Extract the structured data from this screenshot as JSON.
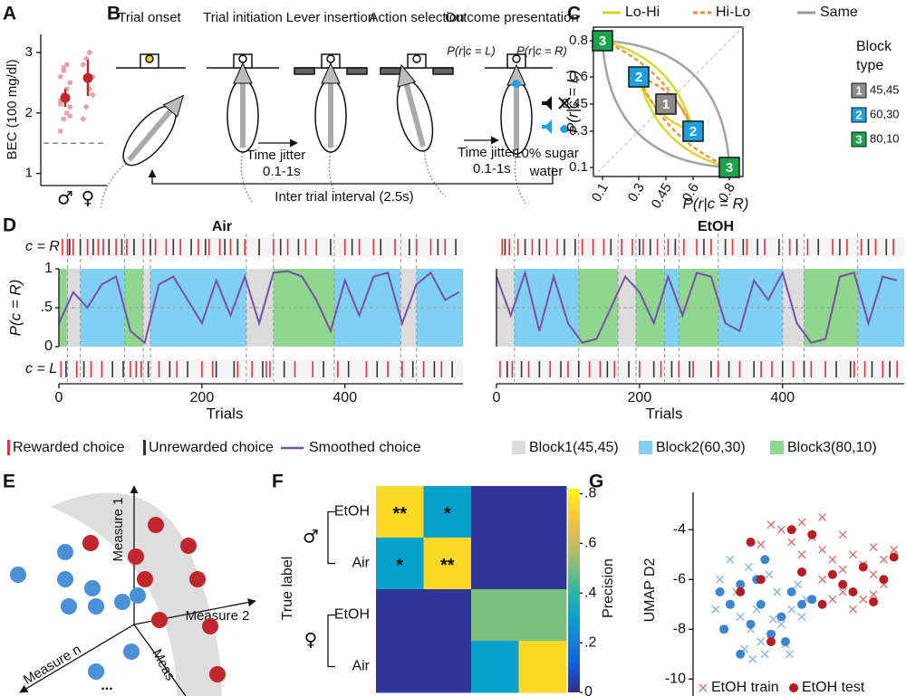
{
  "panel_labels": [
    "A",
    "B",
    "C",
    "D",
    "E",
    "F",
    "G"
  ],
  "panel_b": {
    "steps": [
      "Trial onset",
      "Trial initiation",
      "Lever insertion",
      "Action selection",
      "Outcome presentation"
    ],
    "jitter": [
      "Time jitter",
      "0.1-1s"
    ],
    "iti": "Inter trial interval (2.5s)",
    "outcome_labels": [
      "P(r|c = L)",
      "P(r|c = R)"
    ],
    "reward": [
      "10% sugar",
      "water"
    ]
  },
  "panel_e": {
    "axes": [
      "Measure 1",
      "Measure 2",
      "Measure n",
      "Meas"
    ],
    "ellipsis": "..."
  },
  "d_legend": [
    {
      "name": "Rewarded choice",
      "color": "#e8303a"
    },
    {
      "name": "Unrewarded choice",
      "color": "#333333"
    },
    {
      "name": "Smoothed choice",
      "color": "#7b4fa8"
    },
    {
      "name": "Block1(45,45)",
      "color": "#dcdcdc"
    },
    {
      "name": "Block2(60,30)",
      "color": "#7fd0f2"
    },
    {
      "name": "Block3(80,10)",
      "color": "#8fd68f"
    }
  ],
  "chart_data": [
    {
      "type": "strip",
      "ylabel": "BEC (100 mg/dl)",
      "categories": [
        "♂",
        "♀"
      ],
      "points": [
        [
          1.7,
          1.9,
          2.0,
          2.1,
          2.2,
          2.3,
          2.4,
          2.5,
          2.6,
          2.7,
          2.8,
          1.95,
          2.15,
          2.75
        ],
        [
          1.9,
          2.1,
          2.4,
          2.6,
          2.8,
          2.9,
          3.0,
          2.3
        ]
      ],
      "values": [
        2.25,
        2.58
      ],
      "errors": [
        0.15,
        0.3
      ],
      "color": "#c0272d",
      "point_color": "#e8a0aa",
      "reference_line": 1.5,
      "ylim": [
        0.8,
        3.3
      ],
      "yticks": [
        1,
        2,
        3
      ]
    },
    {
      "type": "block-map",
      "xlabel": "P(r|c = R)",
      "ylabel": "P(r|c = L)",
      "xlim": [
        0.05,
        0.875
      ],
      "ylim": [
        0.05,
        0.875
      ],
      "xticks": [
        0.1,
        0.3,
        0.45,
        0.6,
        0.8
      ],
      "yticks": [
        0.1,
        0.3,
        0.45,
        0.6,
        0.8
      ],
      "x": [
        0.45,
        0.3,
        0.6,
        0.1,
        0.8
      ],
      "y": [
        0.45,
        0.6,
        0.3,
        0.8,
        0.1
      ],
      "labels": [
        1,
        2,
        2,
        3,
        3
      ],
      "series": [
        {
          "name": "Lo-Hi",
          "color": "#d4d41e"
        },
        {
          "name": "Hi-Lo",
          "color": "#f08a24",
          "style": "dashed"
        },
        {
          "name": "Same",
          "color": "#9a9a9a"
        }
      ],
      "legend_title": [
        "Block",
        "type"
      ],
      "block_types": [
        {
          "label": 1,
          "name": "45,45",
          "color": "#8c8c8c"
        },
        {
          "label": 2,
          "name": "60,30",
          "color": "#1ea0e0"
        },
        {
          "label": 3,
          "name": "80,10",
          "color": "#1aa34a"
        }
      ]
    },
    {
      "type": "line",
      "title": "Air",
      "xlabel": "Trials",
      "ylabel": "P(c = R)",
      "raster_labels": [
        "c = R",
        "c = L"
      ],
      "xlim": [
        0,
        565
      ],
      "ylim": [
        0,
        1
      ],
      "xticks": [
        0,
        200,
        400
      ],
      "yticks": [
        0,
        {
          "value": 0.5,
          "label": ".5"
        },
        1
      ],
      "reference_line": 0.5,
      "x": [
        0,
        20,
        40,
        60,
        80,
        100,
        120,
        140,
        160,
        180,
        200,
        220,
        240,
        260,
        280,
        300,
        320,
        340,
        360,
        380,
        400,
        420,
        440,
        460,
        480,
        500,
        520,
        540,
        560
      ],
      "values": [
        0.3,
        0.7,
        0.5,
        0.8,
        0.9,
        0.2,
        0.05,
        0.8,
        0.9,
        0.6,
        0.3,
        0.85,
        0.4,
        0.9,
        0.3,
        0.95,
        0.97,
        0.9,
        0.6,
        0.2,
        0.85,
        0.4,
        0.9,
        0.95,
        0.3,
        0.8,
        0.95,
        0.6,
        0.7
      ],
      "blocks": [
        {
          "start": 0,
          "end": 12,
          "type": 3
        },
        {
          "start": 12,
          "end": 30,
          "type": 1
        },
        {
          "start": 30,
          "end": 92,
          "type": 2
        },
        {
          "start": 92,
          "end": 118,
          "type": 3
        },
        {
          "start": 118,
          "end": 128,
          "type": 1
        },
        {
          "start": 128,
          "end": 262,
          "type": 2
        },
        {
          "start": 262,
          "end": 300,
          "type": 1
        },
        {
          "start": 300,
          "end": 385,
          "type": 3
        },
        {
          "start": 385,
          "end": 478,
          "type": 2
        },
        {
          "start": 478,
          "end": 500,
          "type": 1
        },
        {
          "start": 500,
          "end": 565,
          "type": 2
        }
      ],
      "rasters": {
        "R": {
          "rewarded": [
            5,
            12,
            20,
            40,
            55,
            62,
            80,
            95,
            118,
            135,
            150,
            170,
            195,
            210,
            225,
            240,
            260,
            300,
            320,
            345,
            360,
            400,
            420,
            440,
            470,
            500,
            520,
            540
          ],
          "unrewarded": [
            15,
            30,
            48,
            70,
            88,
            105,
            128,
            160,
            185,
            205,
            232,
            250,
            280,
            310,
            335,
            380,
            410,
            450,
            490,
            530,
            555
          ]
        },
        "L": {
          "rewarded": [
            3,
            25,
            45,
            60,
            100,
            108,
            115,
            140,
            165,
            200,
            215,
            250,
            270,
            290,
            295,
            330,
            355,
            390,
            430,
            460,
            480,
            510,
            535
          ],
          "unrewarded": [
            10,
            35,
            75,
            90,
            125,
            155,
            180,
            220,
            245,
            285,
            315,
            370,
            405,
            445,
            495,
            525,
            550
          ]
        }
      }
    },
    {
      "type": "line",
      "title": "EtOH",
      "xlabel": "Trials",
      "xlim": [
        0,
        570
      ],
      "ylim": [
        0,
        1
      ],
      "xticks": [
        0,
        200,
        400
      ],
      "reference_line": 0.5,
      "x": [
        0,
        20,
        40,
        60,
        80,
        100,
        120,
        140,
        160,
        180,
        200,
        220,
        240,
        260,
        280,
        300,
        320,
        340,
        360,
        380,
        400,
        420,
        440,
        460,
        480,
        500,
        520,
        540,
        560
      ],
      "values": [
        0.9,
        0.4,
        0.95,
        0.2,
        0.9,
        0.3,
        0.05,
        0.1,
        0.5,
        0.9,
        0.7,
        0.3,
        0.9,
        0.4,
        0.95,
        0.9,
        0.3,
        0.2,
        0.85,
        0.6,
        0.95,
        0.3,
        0.05,
        0.1,
        0.9,
        0.95,
        0.3,
        0.9,
        0.85
      ],
      "blocks": [
        {
          "start": 0,
          "end": 25,
          "type": 1
        },
        {
          "start": 25,
          "end": 115,
          "type": 2
        },
        {
          "start": 115,
          "end": 170,
          "type": 3
        },
        {
          "start": 170,
          "end": 195,
          "type": 1
        },
        {
          "start": 195,
          "end": 235,
          "type": 3
        },
        {
          "start": 235,
          "end": 255,
          "type": 2
        },
        {
          "start": 255,
          "end": 310,
          "type": 3
        },
        {
          "start": 310,
          "end": 400,
          "type": 2
        },
        {
          "start": 400,
          "end": 430,
          "type": 1
        },
        {
          "start": 430,
          "end": 505,
          "type": 3
        },
        {
          "start": 505,
          "end": 570,
          "type": 2
        }
      ],
      "rasters": {
        "R": {
          "rewarded": [
            8,
            18,
            30,
            50,
            70,
            85,
            120,
            135,
            150,
            175,
            190,
            205,
            225,
            240,
            262,
            280,
            300,
            330,
            350,
            375,
            410,
            435,
            470,
            490,
            510,
            530,
            555
          ],
          "unrewarded": [
            12,
            40,
            60,
            95,
            110,
            160,
            200,
            215,
            250,
            290,
            320,
            345,
            365,
            395,
            420,
            450,
            480,
            520,
            545
          ]
        },
        "L": {
          "rewarded": [
            5,
            22,
            45,
            75,
            100,
            130,
            145,
            165,
            200,
            230,
            255,
            275,
            310,
            340,
            370,
            385,
            415,
            440,
            460,
            500,
            515,
            540,
            560
          ],
          "unrewarded": [
            15,
            35,
            60,
            90,
            115,
            155,
            185,
            220,
            245,
            270,
            300,
            325,
            360,
            400,
            430,
            475,
            495,
            525,
            550
          ]
        }
      }
    },
    {
      "type": "heatmap",
      "ylabel": "True label",
      "rows": [
        "EtOH",
        "Air",
        "EtOH",
        "Air"
      ],
      "groups": [
        "♂",
        "♀"
      ],
      "values": [
        [
          0.75,
          0.3,
          0.02,
          0.02
        ],
        [
          0.3,
          0.75,
          0.02,
          0.02
        ],
        [
          0.02,
          0.02,
          0.5,
          0.5
        ],
        [
          0.02,
          0.02,
          0.3,
          0.75
        ]
      ],
      "annotations": [
        [
          "**",
          "*",
          null,
          null
        ],
        [
          "*",
          "**",
          null,
          null
        ],
        [
          null,
          null,
          null,
          null
        ],
        [
          null,
          null,
          null,
          null
        ]
      ],
      "colorbar_label": "Precision",
      "clim": [
        0,
        0.82
      ],
      "cticks": [
        0,
        {
          "value": 0.2,
          "label": ".2"
        },
        {
          "value": 0.4,
          "label": ".4"
        },
        {
          "value": 0.6,
          "label": ".6"
        },
        {
          "value": 0.8,
          "label": ".8"
        }
      ]
    },
    {
      "type": "scatter",
      "ylabel": "UMAP D2",
      "xlim": [
        0,
        10
      ],
      "ylim": [
        -10.5,
        -2.5
      ],
      "yticks": [
        -10,
        -8,
        -6,
        -4
      ],
      "series": [
        {
          "name": "EtOH train",
          "color": "#d9706a",
          "marker": "x",
          "x": [
            4,
            5,
            5.5,
            6,
            6.5,
            7,
            7.5,
            8,
            8.5,
            9,
            9.5,
            6,
            7,
            8,
            9,
            5,
            6.5,
            7.5,
            8.5,
            4.5,
            3.5,
            3,
            6,
            7,
            8.5
          ],
          "y": [
            -4,
            -3.7,
            -4.3,
            -4.8,
            -5.2,
            -5.6,
            -5,
            -5.4,
            -5.8,
            -5.2,
            -4.8,
            -6,
            -6.5,
            -6.8,
            -6.2,
            -5,
            -6.8,
            -7.2,
            -6.6,
            -4.5,
            -3.8,
            -4.6,
            -3.5,
            -4.2,
            -4.7
          ]
        },
        {
          "name": "EtOH test",
          "color": "#b81c23",
          "marker": "dot",
          "x": [
            2.5,
            3,
            5,
            6.5,
            7,
            8,
            9,
            9.5,
            5.5,
            4.5,
            7.5,
            6,
            8.5,
            2,
            3.5
          ],
          "y": [
            -4.5,
            -6,
            -5.7,
            -5.8,
            -6.2,
            -5.5,
            -6,
            -5.1,
            -4.2,
            -4,
            -6.5,
            -7,
            -6.9,
            -6.5,
            -8.5
          ]
        },
        {
          "color": "#7fb5e6",
          "marker": "x",
          "x": [
            1,
            1.5,
            2,
            2.5,
            3,
            3.5,
            4,
            4.5,
            5,
            1.2,
            2.2,
            3.2,
            4.2,
            5.2,
            1.8,
            2.8,
            3.8,
            4.8,
            2.4,
            3.4,
            1.5,
            2.6,
            3.6,
            4.4,
            0.8
          ],
          "y": [
            -6,
            -7,
            -7.5,
            -8,
            -8.5,
            -8.2,
            -7.8,
            -7.2,
            -7.5,
            -8,
            -8.8,
            -9,
            -8.6,
            -6.8,
            -6.5,
            -7.2,
            -6.5,
            -6.2,
            -5.5,
            -5.8,
            -5.2,
            -9.2,
            -7.6,
            -9,
            -7.2
          ]
        },
        {
          "color": "#3d85d1",
          "marker": "dot",
          "x": [
            1,
            1.5,
            2,
            2.5,
            3,
            4,
            4.5,
            3.5,
            2.8,
            5,
            1.2,
            3.2,
            4.2,
            2,
            5.5
          ],
          "y": [
            -6.5,
            -7,
            -6.2,
            -7.8,
            -7,
            -7.5,
            -6.5,
            -8.2,
            -6,
            -7,
            -8,
            -5.2,
            -8.5,
            -9,
            -6.8
          ]
        }
      ]
    }
  ]
}
